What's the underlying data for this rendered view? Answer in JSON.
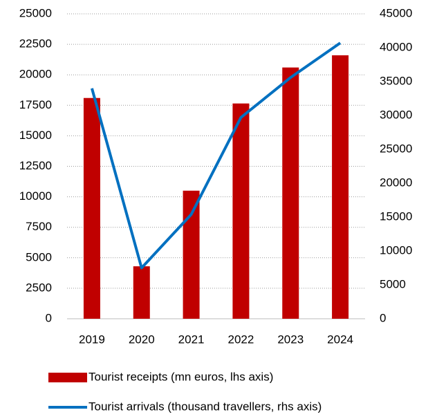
{
  "chart_data": {
    "type": "bar",
    "categories": [
      "2019",
      "2020",
      "2021",
      "2022",
      "2023",
      "2024"
    ],
    "series": [
      {
        "name": "Tourist receipts (mn euros, lhs axis)",
        "type": "bar",
        "color": "#c00000",
        "values": [
          18100,
          4300,
          10500,
          17650,
          20600,
          21600
        ]
      },
      {
        "name": "Tourist arrivals (thousand travellers, rhs axis)",
        "type": "line",
        "axis": "y2",
        "color": "#0070c0",
        "values": [
          34000,
          7500,
          15400,
          29700,
          35600,
          40700
        ]
      }
    ],
    "ylim": [
      0,
      25000
    ],
    "yticks": [
      0,
      2500,
      5000,
      7500,
      10000,
      12500,
      15000,
      17500,
      20000,
      22500,
      25000
    ],
    "y2lim": [
      0,
      45000
    ],
    "y2ticks": [
      0,
      5000,
      10000,
      15000,
      20000,
      25000,
      30000,
      35000,
      40000,
      45000
    ],
    "grid": true,
    "legend": "bottom"
  }
}
